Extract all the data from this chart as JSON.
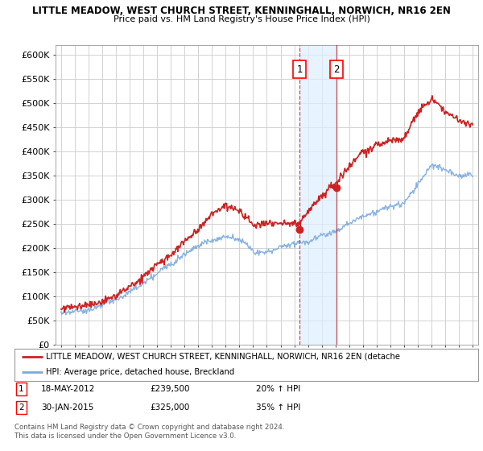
{
  "title": "LITTLE MEADOW, WEST CHURCH STREET, KENNINGHALL, NORWICH, NR16 2EN",
  "subtitle": "Price paid vs. HM Land Registry's House Price Index (HPI)",
  "ylabel_ticks": [
    "£0",
    "£50K",
    "£100K",
    "£150K",
    "£200K",
    "£250K",
    "£300K",
    "£350K",
    "£400K",
    "£450K",
    "£500K",
    "£550K",
    "£600K"
  ],
  "ytick_values": [
    0,
    50000,
    100000,
    150000,
    200000,
    250000,
    300000,
    350000,
    400000,
    450000,
    500000,
    550000,
    600000
  ],
  "transaction1_x": 2012.38,
  "transaction1_price": 239500,
  "transaction2_x": 2015.08,
  "transaction2_price": 325000,
  "legend_red": "LITTLE MEADOW, WEST CHURCH STREET, KENNINGHALL, NORWICH, NR16 2EN (detache",
  "legend_blue": "HPI: Average price, detached house, Breckland",
  "footnote": "Contains HM Land Registry data © Crown copyright and database right 2024.\nThis data is licensed under the Open Government Licence v3.0.",
  "red_color": "#cc2222",
  "blue_color": "#7aaadd",
  "bg_color": "#ffffff",
  "highlight_color": "#ddeeff",
  "label_box_color": "#ff0000",
  "grid_color": "#cccccc"
}
